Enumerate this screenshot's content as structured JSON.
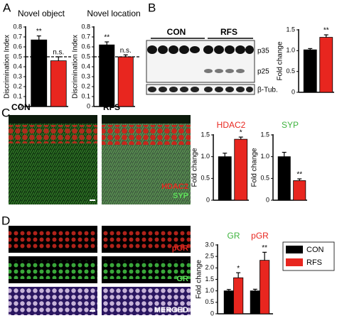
{
  "panels": [
    "A",
    "B",
    "C",
    "D"
  ],
  "blot": {
    "groups": [
      "CON",
      "RFS"
    ],
    "bands": [
      "p35",
      "p25",
      "β-Tub."
    ]
  },
  "micrograph_c": {
    "conditions": [
      "CON",
      "RFS"
    ],
    "stains": [
      "HDAC2",
      "SYP"
    ]
  },
  "micrograph_d": {
    "stains": [
      "pGR",
      "GR",
      "MERGED"
    ]
  },
  "chart_data": [
    {
      "type": "bar",
      "title": "Novel object",
      "y_label": "Discrimination Index",
      "values": [
        0.67,
        0.46
      ],
      "errors": [
        0.04,
        0.04
      ],
      "colors": [
        "#000000",
        "#e8261f"
      ],
      "annotations": [
        "**",
        "n.s."
      ],
      "ref_line": 0.5,
      "ylim": [
        0,
        0.8
      ],
      "yticks": [
        0,
        0.1,
        0.2,
        0.3,
        0.4,
        0.5,
        0.6,
        0.7,
        0.8
      ]
    },
    {
      "type": "bar",
      "title": "Novel location",
      "y_label": "Discrimination Index",
      "values": [
        0.62,
        0.5
      ],
      "errors": [
        0.03,
        0.02
      ],
      "colors": [
        "#000000",
        "#e8261f"
      ],
      "annotations": [
        "**",
        "n.s."
      ],
      "ref_line": 0.5,
      "ylim": [
        0,
        0.8
      ],
      "yticks": [
        0,
        0.1,
        0.2,
        0.3,
        0.4,
        0.5,
        0.6,
        0.7,
        0.8
      ]
    },
    {
      "type": "bar",
      "y_label": "Fold change",
      "values": [
        1.02,
        1.32
      ],
      "errors": [
        0.03,
        0.06
      ],
      "colors": [
        "#000000",
        "#e8261f"
      ],
      "annotations": [
        null,
        "**"
      ],
      "ylim": [
        0,
        1.5
      ],
      "yticks": [
        0,
        0.5,
        {
          "value": 1,
          "label": "1.0"
        },
        1.5
      ]
    },
    {
      "type": "bar",
      "title": "HDAC2",
      "title_color": "#e8261f",
      "y_label": "Fold change",
      "values": [
        1.0,
        1.4
      ],
      "errors": [
        0.08,
        0.05
      ],
      "colors": [
        "#000000",
        "#e8261f"
      ],
      "annotations": [
        null,
        "*"
      ],
      "ylim": [
        0,
        1.5
      ],
      "yticks": [
        0,
        0.5,
        {
          "value": 1,
          "label": "1.0"
        },
        1.5
      ]
    },
    {
      "type": "bar",
      "title": "SYP",
      "title_color": "#3fb43f",
      "y_label": "Fold change",
      "values": [
        1.0,
        0.45
      ],
      "errors": [
        0.1,
        0.04
      ],
      "colors": [
        "#000000",
        "#e8261f"
      ],
      "annotations": [
        null,
        "**"
      ],
      "ylim": [
        0,
        1.5
      ],
      "yticks": [
        0,
        0.5,
        {
          "value": 1,
          "label": "1.0"
        },
        1.5
      ]
    },
    {
      "type": "grouped_bar",
      "y_label": "Fold change",
      "categories": [
        "GR",
        "pGR"
      ],
      "category_colors": [
        "#3fb43f",
        "#e8261f"
      ],
      "series": [
        {
          "name": "CON",
          "color": "#000000",
          "values": [
            1.0,
            1.0
          ],
          "errors": [
            0.06,
            0.07
          ],
          "annotations": [
            null,
            null
          ]
        },
        {
          "name": "RFS",
          "color": "#e8261f",
          "values": [
            1.57,
            2.33
          ],
          "errors": [
            0.22,
            0.35
          ],
          "annotations": [
            "*",
            "**"
          ]
        }
      ],
      "ylim": [
        0,
        3
      ],
      "yticks": [
        0,
        0.5,
        {
          "value": 1,
          "label": "1.0"
        },
        1.5,
        {
          "value": 2,
          "label": "2.0"
        },
        2.5,
        {
          "value": 3,
          "label": "3.0"
        }
      ]
    }
  ]
}
